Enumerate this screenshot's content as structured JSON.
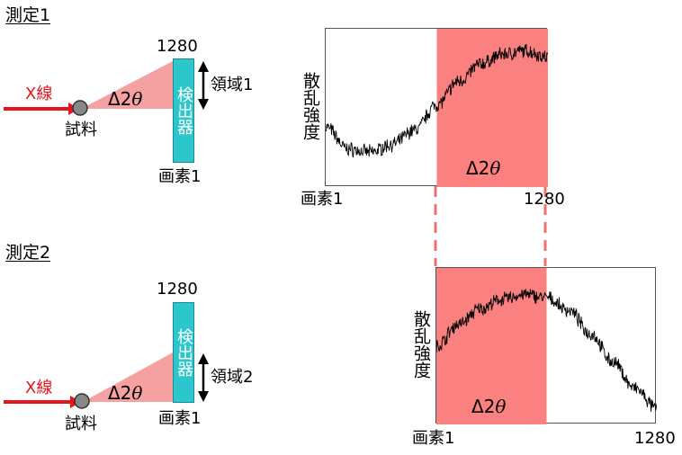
{
  "measurement1": {
    "title": "測定1",
    "xray_label": "X線",
    "sample_label": "試料",
    "angle_label_prefix": "Δ2",
    "angle_symbol": "θ",
    "detector_label": "検出器",
    "detector_top_label": "1280",
    "detector_bottom_label": "画素1",
    "region_label": "領域1",
    "chart": {
      "ylabel": "散乱強度",
      "x_start_label": "画素1",
      "x_end_label": "1280",
      "band_label_prefix": "Δ2",
      "band_label_symbol": "θ"
    }
  },
  "measurement2": {
    "title": "測定2",
    "xray_label": "X線",
    "sample_label": "試料",
    "angle_label_prefix": "Δ2",
    "angle_symbol": "θ",
    "detector_label": "検出器",
    "detector_top_label": "1280",
    "detector_bottom_label": "画素1",
    "region_label": "領域2",
    "chart": {
      "ylabel": "散乱強度",
      "x_start_label": "画素1",
      "x_end_label": "1280",
      "band_label_prefix": "Δ2",
      "band_label_symbol": "θ"
    }
  },
  "colors": {
    "xray": "#e8141b",
    "beam_fan": "#f6a1a1",
    "band": "#fb8080",
    "detector": "#2cc7cc",
    "dashed_link": "#f07070"
  },
  "chart_data": [
    {
      "type": "line",
      "xlabel": "",
      "ylabel": "散乱強度",
      "x_range": [
        1,
        1280
      ],
      "band": {
        "label": "Δ2θ",
        "x_start_fraction": 0.5,
        "x_end_fraction": 1.0
      },
      "x": [
        0,
        0.1,
        0.2,
        0.3,
        0.4,
        0.5,
        0.6,
        0.7,
        0.8,
        0.9,
        1.0
      ],
      "y": [
        0.38,
        0.24,
        0.22,
        0.27,
        0.36,
        0.52,
        0.67,
        0.78,
        0.84,
        0.86,
        0.82
      ]
    },
    {
      "type": "line",
      "xlabel": "",
      "ylabel": "散乱強度",
      "x_range": [
        1,
        1280
      ],
      "band": {
        "label": "Δ2θ",
        "x_start_fraction": 0.0,
        "x_end_fraction": 0.5
      },
      "x": [
        0,
        0.1,
        0.2,
        0.3,
        0.4,
        0.5,
        0.6,
        0.7,
        0.8,
        0.9,
        1.0
      ],
      "y": [
        0.5,
        0.64,
        0.74,
        0.8,
        0.83,
        0.81,
        0.73,
        0.58,
        0.4,
        0.23,
        0.1
      ]
    }
  ]
}
